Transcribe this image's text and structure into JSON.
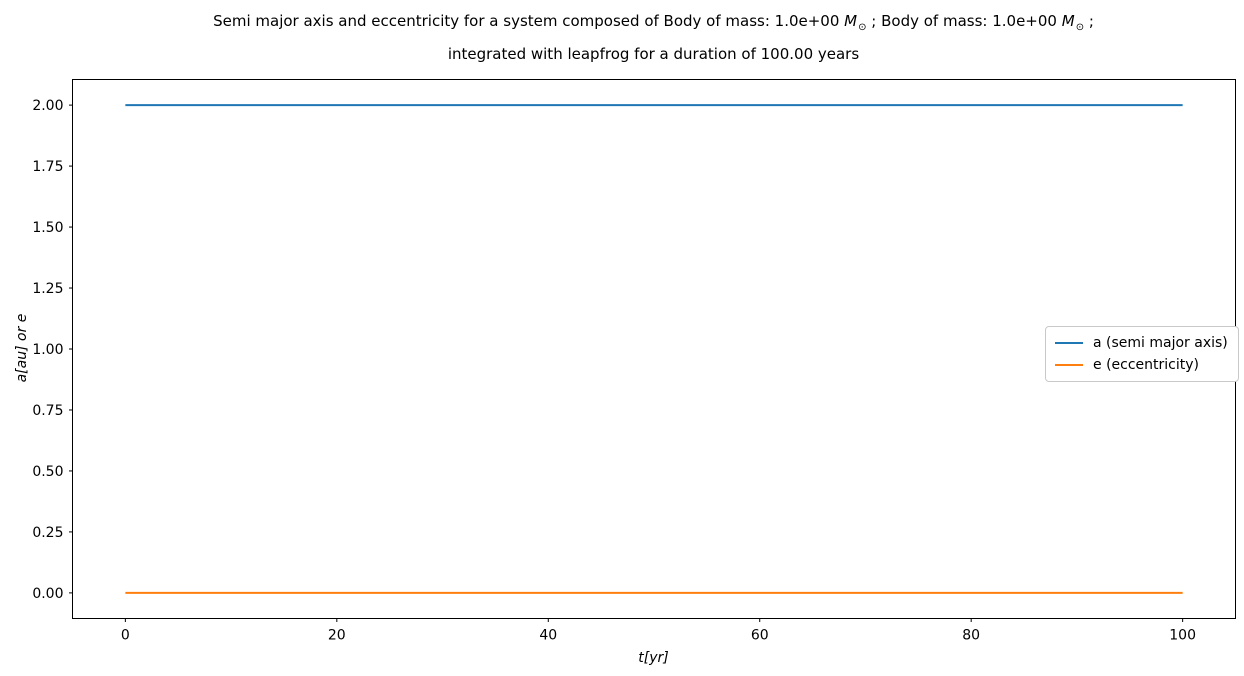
{
  "chart_data": {
    "type": "line",
    "title": {
      "l1a": "Semi major axis and eccentricity for a system composed of Body of mass: 1.0e+00 ",
      "m1": "M",
      "sun1": "⊙",
      "l1b": " ; Body of mass: 1.0e+00 ",
      "m2": "M",
      "sun2": "⊙",
      "l1c": " ;",
      "line2": "integrated with leapfrog for a duration of 100.00 years"
    },
    "xlabel": "t[yr]",
    "ylabel": "a[au] or e",
    "xlim": [
      -5,
      105
    ],
    "ylim": [
      -0.105,
      2.105
    ],
    "xticks": [
      0,
      20,
      40,
      60,
      80,
      100
    ],
    "xtick_labels": [
      "0",
      "20",
      "40",
      "60",
      "80",
      "100"
    ],
    "yticks": [
      0.0,
      0.25,
      0.5,
      0.75,
      1.0,
      1.25,
      1.5,
      1.75,
      2.0
    ],
    "ytick_labels": [
      "0.00",
      "0.25",
      "0.50",
      "0.75",
      "1.00",
      "1.25",
      "1.50",
      "1.75",
      "2.00"
    ],
    "grid": false,
    "legend_position": "center right",
    "series": [
      {
        "name": "a (semi major axis)",
        "color": "#1f77b4",
        "x": [
          0,
          100
        ],
        "y": [
          2.0,
          2.0
        ]
      },
      {
        "name": "e (eccentricity)",
        "color": "#ff7f0e",
        "x": [
          0,
          100
        ],
        "y": [
          0.0,
          0.0
        ]
      }
    ],
    "frame_color": "#000000",
    "background_color": "#ffffff"
  }
}
